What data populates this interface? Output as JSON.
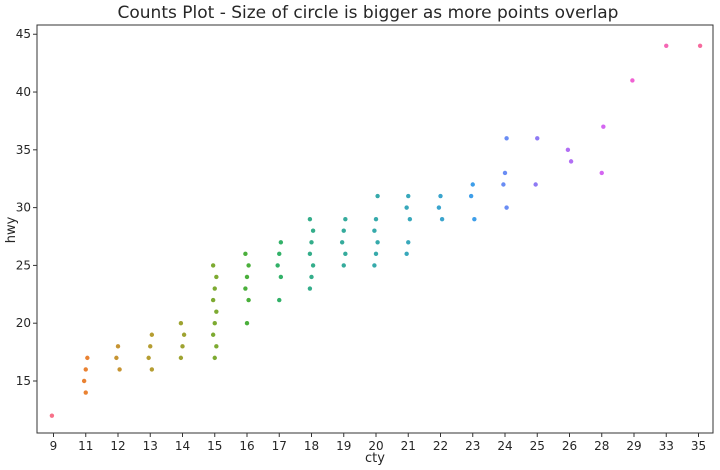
{
  "chart_data": {
    "type": "scatter",
    "title": "Counts Plot - Size of circle is bigger as more points overlap",
    "xlabel": "cty",
    "ylabel": "hwy",
    "x_scale": "categorical",
    "categories": [
      "9",
      "11",
      "12",
      "13",
      "14",
      "15",
      "16",
      "17",
      "18",
      "19",
      "20",
      "21",
      "22",
      "23",
      "24",
      "25",
      "26",
      "28",
      "29",
      "33",
      "35"
    ],
    "ylim": [
      10.5,
      45.8
    ],
    "yticks": [
      15,
      20,
      25,
      30,
      35,
      40,
      45
    ],
    "grid": false,
    "legend": "none",
    "category_colors": [
      "#f77189",
      "#e98232",
      "#c69432",
      "#b59d31",
      "#9ea331",
      "#7daa31",
      "#4aaf3b",
      "#32b168",
      "#34ad8a",
      "#35ab9c",
      "#36aaab",
      "#38a8bb",
      "#3aa4cd",
      "#3e9ee9",
      "#6a8df4",
      "#8e7af4",
      "#b16ef4",
      "#d466f1",
      "#f062d3",
      "#f567b5",
      "#f66b9e"
    ],
    "points": [
      {
        "x": "9",
        "y": 12
      },
      {
        "x": "11",
        "y": 16
      },
      {
        "x": "11",
        "y": 17
      },
      {
        "x": "11",
        "y": 15
      },
      {
        "x": "11",
        "y": 14
      },
      {
        "x": "12",
        "y": 16
      },
      {
        "x": "12",
        "y": 17
      },
      {
        "x": "12",
        "y": 18
      },
      {
        "x": "13",
        "y": 16
      },
      {
        "x": "13",
        "y": 17
      },
      {
        "x": "13",
        "y": 18
      },
      {
        "x": "13",
        "y": 19
      },
      {
        "x": "14",
        "y": 17
      },
      {
        "x": "14",
        "y": 18
      },
      {
        "x": "14",
        "y": 19
      },
      {
        "x": "14",
        "y": 20
      },
      {
        "x": "15",
        "y": 17
      },
      {
        "x": "15",
        "y": 18
      },
      {
        "x": "15",
        "y": 19
      },
      {
        "x": "15",
        "y": 20
      },
      {
        "x": "15",
        "y": 21
      },
      {
        "x": "15",
        "y": 22
      },
      {
        "x": "15",
        "y": 23
      },
      {
        "x": "15",
        "y": 24
      },
      {
        "x": "15",
        "y": 25
      },
      {
        "x": "16",
        "y": 20
      },
      {
        "x": "16",
        "y": 22
      },
      {
        "x": "16",
        "y": 23
      },
      {
        "x": "16",
        "y": 24
      },
      {
        "x": "16",
        "y": 25
      },
      {
        "x": "16",
        "y": 26
      },
      {
        "x": "17",
        "y": 22
      },
      {
        "x": "17",
        "y": 24
      },
      {
        "x": "17",
        "y": 25
      },
      {
        "x": "17",
        "y": 26
      },
      {
        "x": "17",
        "y": 27
      },
      {
        "x": "18",
        "y": 23
      },
      {
        "x": "18",
        "y": 24
      },
      {
        "x": "18",
        "y": 25
      },
      {
        "x": "18",
        "y": 26
      },
      {
        "x": "18",
        "y": 27
      },
      {
        "x": "18",
        "y": 28
      },
      {
        "x": "18",
        "y": 29
      },
      {
        "x": "19",
        "y": 25
      },
      {
        "x": "19",
        "y": 26
      },
      {
        "x": "19",
        "y": 27
      },
      {
        "x": "19",
        "y": 28
      },
      {
        "x": "19",
        "y": 29
      },
      {
        "x": "20",
        "y": 25
      },
      {
        "x": "20",
        "y": 26
      },
      {
        "x": "20",
        "y": 27
      },
      {
        "x": "20",
        "y": 28
      },
      {
        "x": "20",
        "y": 29
      },
      {
        "x": "20",
        "y": 31
      },
      {
        "x": "21",
        "y": 26
      },
      {
        "x": "21",
        "y": 27
      },
      {
        "x": "21",
        "y": 29
      },
      {
        "x": "21",
        "y": 30
      },
      {
        "x": "21",
        "y": 31
      },
      {
        "x": "22",
        "y": 29
      },
      {
        "x": "22",
        "y": 30
      },
      {
        "x": "22",
        "y": 31
      },
      {
        "x": "23",
        "y": 29
      },
      {
        "x": "23",
        "y": 31
      },
      {
        "x": "23",
        "y": 32
      },
      {
        "x": "24",
        "y": 30
      },
      {
        "x": "24",
        "y": 32
      },
      {
        "x": "24",
        "y": 33
      },
      {
        "x": "24",
        "y": 36
      },
      {
        "x": "25",
        "y": 32
      },
      {
        "x": "25",
        "y": 36
      },
      {
        "x": "26",
        "y": 34
      },
      {
        "x": "26",
        "y": 35
      },
      {
        "x": "28",
        "y": 33
      },
      {
        "x": "28",
        "y": 37
      },
      {
        "x": "29",
        "y": 41
      },
      {
        "x": "33",
        "y": 44
      },
      {
        "x": "35",
        "y": 44
      }
    ]
  }
}
